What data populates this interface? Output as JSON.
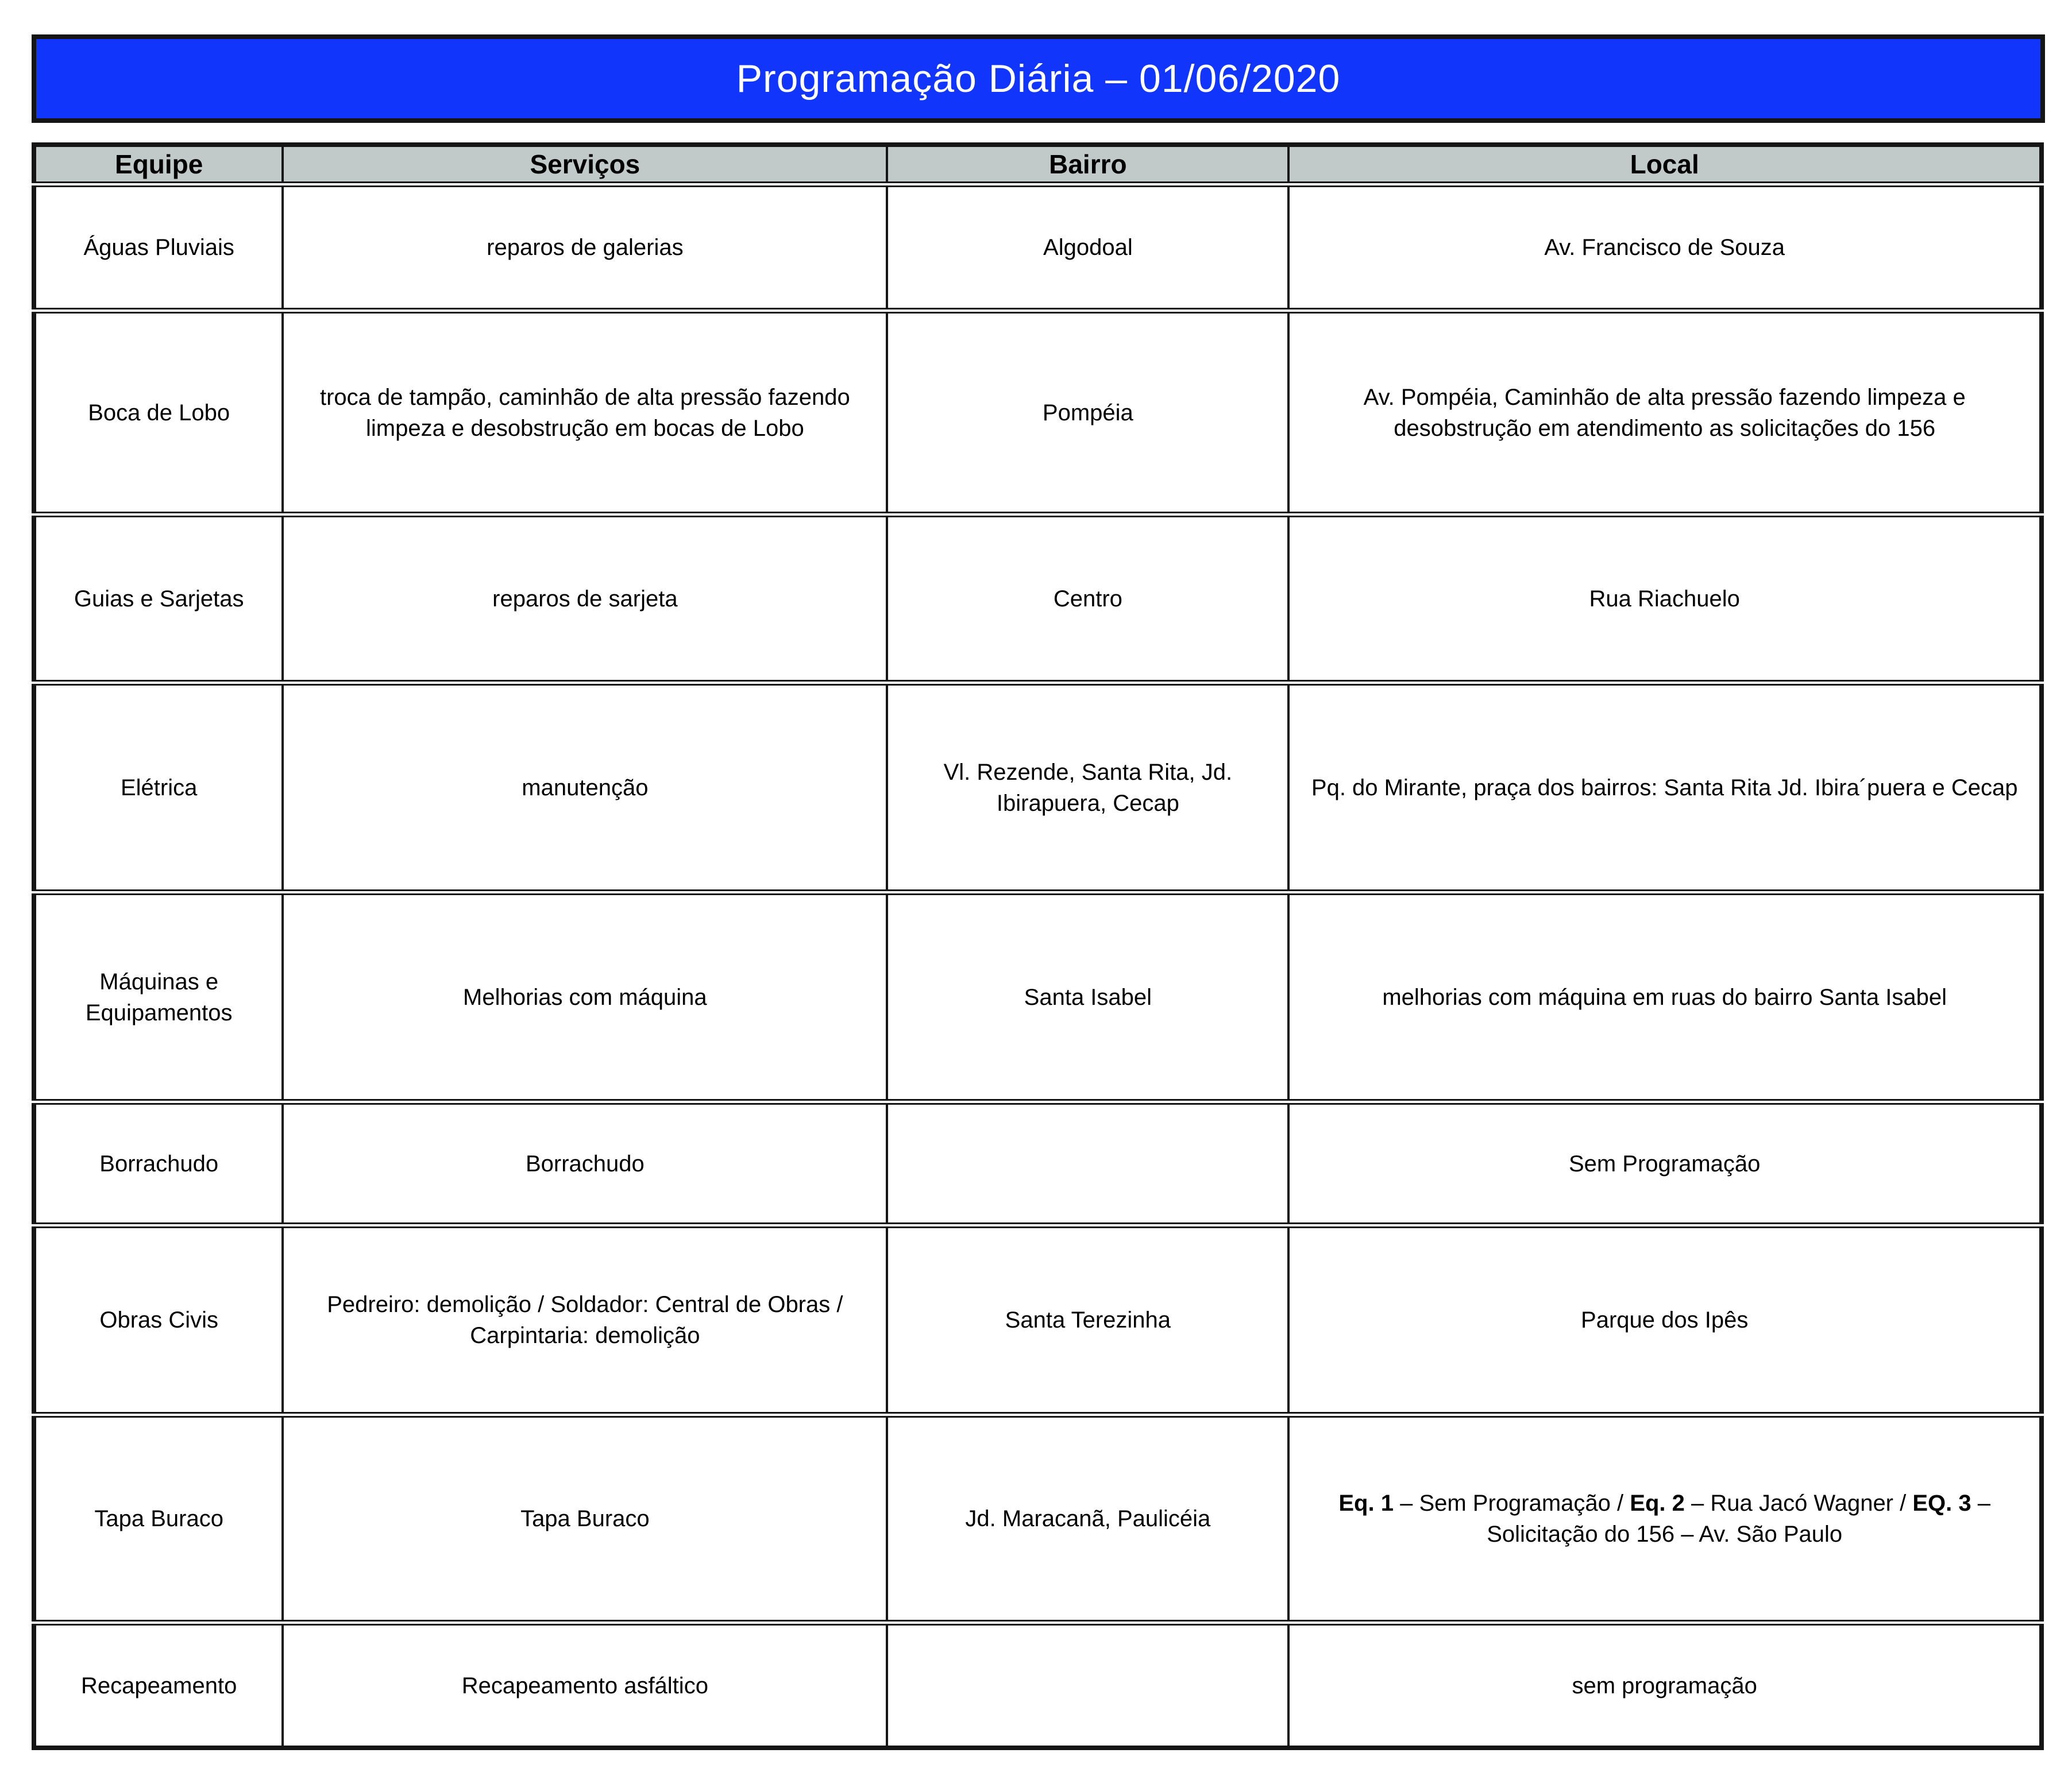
{
  "title": "Programação Diária –  01/06/2020",
  "colors": {
    "banner_bg": "#1135FA",
    "banner_text": "#FFFFFF",
    "header_bg": "#C1CAC8",
    "border": "#151515"
  },
  "table": {
    "columns": [
      "Equipe",
      "Serviços",
      "Bairro",
      "Local"
    ],
    "rows": [
      {
        "equipe": "Águas Pluviais",
        "servicos": "reparos de galerias",
        "bairro": "Algodoal",
        "local": [
          {
            "text": "Av. Francisco de Souza",
            "bold": false
          }
        ]
      },
      {
        "equipe": "Boca de Lobo",
        "servicos": "troca de tampão, caminhão de alta pressão fazendo limpeza e desobstrução em bocas de Lobo",
        "bairro": "Pompéia",
        "local": [
          {
            "text": "Av. Pompéia, Caminhão de alta pressão fazendo limpeza e desobstrução em atendimento as solicitações do 156",
            "bold": false
          }
        ]
      },
      {
        "equipe": "Guias e Sarjetas",
        "servicos": "reparos de sarjeta",
        "bairro": "Centro",
        "local": [
          {
            "text": "Rua Riachuelo",
            "bold": false
          }
        ]
      },
      {
        "equipe": "Elétrica",
        "servicos": "manutenção",
        "bairro": "Vl. Rezende, Santa Rita, Jd. Ibirapuera, Cecap",
        "local": [
          {
            "text": "Pq. do Mirante, praça dos bairros: Santa Rita Jd. Ibira´puera e Cecap",
            "bold": false
          }
        ]
      },
      {
        "equipe": "Máquinas e Equipamentos",
        "servicos": "Melhorias com máquina",
        "bairro": "Santa Isabel",
        "local": [
          {
            "text": "melhorias com máquina em ruas do bairro Santa Isabel",
            "bold": false
          }
        ]
      },
      {
        "equipe": "Borrachudo",
        "servicos": "Borrachudo",
        "bairro": "",
        "local": [
          {
            "text": "Sem Programação",
            "bold": false
          }
        ]
      },
      {
        "equipe": "Obras Civis",
        "servicos": "Pedreiro: demolição / Soldador: Central de Obras / Carpintaria: demolição",
        "bairro": "Santa Terezinha",
        "local": [
          {
            "text": "Parque dos Ipês",
            "bold": false
          }
        ]
      },
      {
        "equipe": "Tapa Buraco",
        "servicos": "Tapa Buraco",
        "bairro": "Jd. Maracanã, Paulicéia",
        "local": [
          {
            "text": "Eq. 1",
            "bold": true
          },
          {
            "text": " – Sem Programação / ",
            "bold": false
          },
          {
            "text": "Eq. 2",
            "bold": true
          },
          {
            "text": " – Rua Jacó Wagner / ",
            "bold": false
          },
          {
            "text": "EQ. 3",
            "bold": true
          },
          {
            "text": " – Solicitação do 156 – Av. São Paulo",
            "bold": false
          }
        ]
      },
      {
        "equipe": "Recapeamento",
        "servicos": "Recapeamento asfáltico",
        "bairro": "",
        "local": [
          {
            "text": "sem programação",
            "bold": false
          }
        ]
      }
    ]
  }
}
